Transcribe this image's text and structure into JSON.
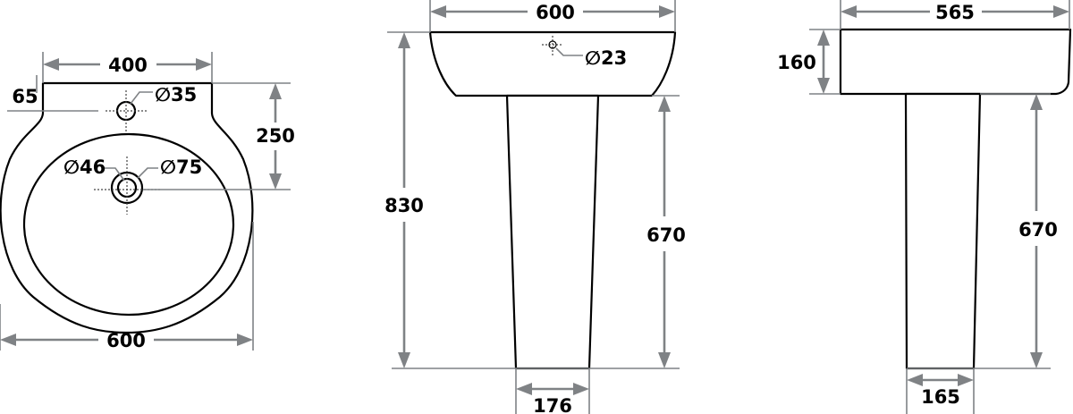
{
  "plan": {
    "width_top": "400",
    "width_overall": "600",
    "tap_offset": "65",
    "depth": "250",
    "tap_hole": "∅35",
    "waste_inner": "∅46",
    "waste_outer": "∅75"
  },
  "front": {
    "width": "600",
    "overall_height": "830",
    "pedestal_height": "670",
    "pedestal_base": "176",
    "overflow": "∅23"
  },
  "side": {
    "depth": "565",
    "basin_height": "160",
    "pedestal_height": "670",
    "pedestal_base": "165"
  }
}
